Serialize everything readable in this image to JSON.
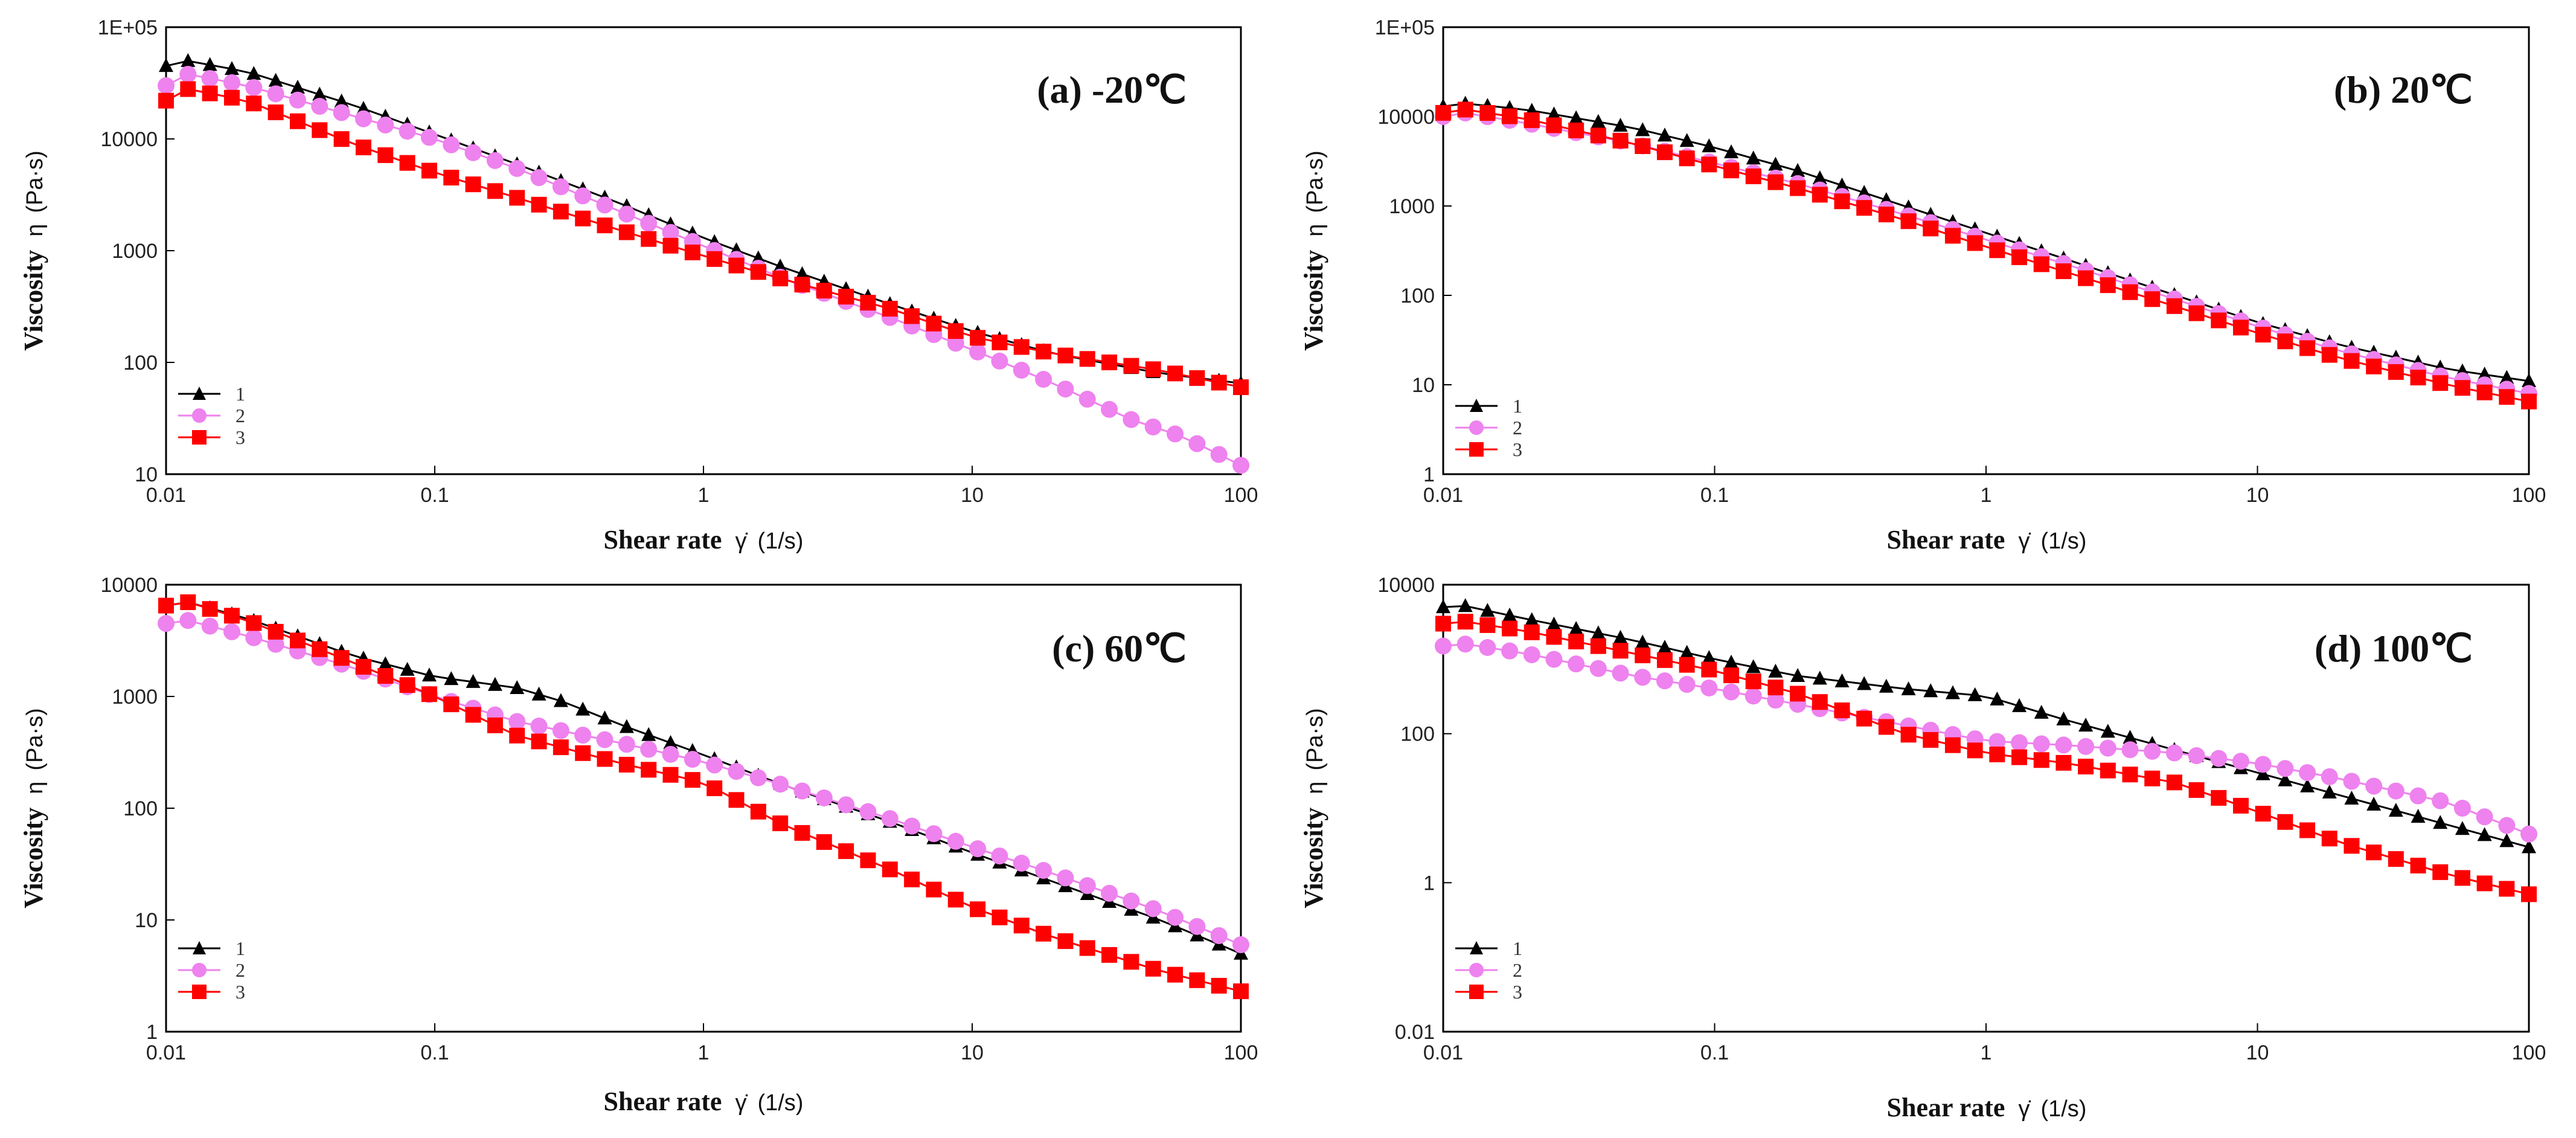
{
  "chart_data": [
    {
      "type": "scatter",
      "title": "(a) -20℃",
      "xlabel": "Shear rate",
      "xlabel_symbol": "γ̇",
      "xlabel_unit": "(1/s)",
      "ylabel": "Viscosity",
      "ylabel_symbol": "η",
      "ylabel_unit": "(Pa·s)",
      "xscale": "log",
      "yscale": "log",
      "xlim": [
        0.01,
        100
      ],
      "ylim": [
        10,
        100000
      ],
      "xticks": [
        "0.01",
        "0.1",
        "1",
        "10",
        "100"
      ],
      "yticks": [
        "10",
        "100",
        "1000",
        "10000",
        "1E+05"
      ],
      "legend_position": "bottom-left",
      "series": [
        {
          "name": "1",
          "marker": "triangle",
          "color": "#000000",
          "x": [
            0.01,
            0.012,
            0.02,
            0.05,
            0.1,
            0.2,
            0.5,
            1,
            2,
            5,
            10,
            20,
            50,
            100
          ],
          "y": [
            45000,
            50000,
            40000,
            20000,
            11000,
            6000,
            2600,
            1300,
            700,
            330,
            190,
            120,
            80,
            65
          ]
        },
        {
          "name": "2",
          "marker": "circle",
          "color": "#ee82ee",
          "x": [
            0.01,
            0.012,
            0.02,
            0.05,
            0.1,
            0.2,
            0.5,
            1,
            2,
            5,
            10,
            20,
            40,
            60,
            100
          ],
          "y": [
            30000,
            38000,
            30000,
            16000,
            10000,
            5500,
            2200,
            1100,
            560,
            250,
            130,
            65,
            30,
            22,
            12
          ]
        },
        {
          "name": "3",
          "marker": "square",
          "color": "#ff0000",
          "x": [
            0.01,
            0.012,
            0.02,
            0.05,
            0.1,
            0.2,
            0.5,
            1,
            2,
            5,
            10,
            20,
            50,
            100
          ],
          "y": [
            22000,
            28000,
            22000,
            9000,
            5000,
            3000,
            1500,
            900,
            550,
            300,
            170,
            120,
            85,
            60
          ]
        }
      ]
    },
    {
      "type": "scatter",
      "title": "(b) 20℃",
      "xlabel": "Shear rate",
      "xlabel_symbol": "γ̇",
      "xlabel_unit": "(1/s)",
      "ylabel": "Viscosity",
      "ylabel_symbol": "η",
      "ylabel_unit": "(Pa·s)",
      "xscale": "log",
      "yscale": "log",
      "xlim": [
        0.01,
        100
      ],
      "ylim": [
        1,
        100000
      ],
      "xticks": [
        "0.01",
        "0.1",
        "1",
        "10",
        "100"
      ],
      "yticks": [
        "1",
        "10",
        "100",
        "1000",
        "10000",
        "1E+05"
      ],
      "legend_position": "bottom-left",
      "series": [
        {
          "name": "1",
          "marker": "triangle",
          "color": "#000000",
          "x": [
            0.01,
            0.012,
            0.02,
            0.05,
            0.1,
            0.2,
            0.5,
            1,
            2,
            5,
            10,
            20,
            50,
            100
          ],
          "y": [
            13000,
            14000,
            12000,
            7500,
            4500,
            2500,
            1000,
            500,
            250,
            100,
            50,
            28,
            15,
            11
          ]
        },
        {
          "name": "2",
          "marker": "circle",
          "color": "#ee82ee",
          "x": [
            0.01,
            0.012,
            0.02,
            0.05,
            0.1,
            0.2,
            0.5,
            1,
            2,
            5,
            10,
            20,
            50,
            100
          ],
          "y": [
            10000,
            11000,
            8500,
            5000,
            3000,
            1800,
            800,
            420,
            220,
            90,
            45,
            24,
            12,
            8
          ]
        },
        {
          "name": "3",
          "marker": "square",
          "color": "#ff0000",
          "x": [
            0.01,
            0.012,
            0.02,
            0.05,
            0.1,
            0.2,
            0.5,
            1,
            2,
            5,
            10,
            20,
            50,
            100
          ],
          "y": [
            11000,
            12000,
            9500,
            5000,
            2800,
            1600,
            700,
            350,
            180,
            75,
            38,
            20,
            10,
            6.5
          ]
        }
      ]
    },
    {
      "type": "scatter",
      "title": "(c) 60℃",
      "xlabel": "Shear rate",
      "xlabel_symbol": "γ̇",
      "xlabel_unit": "(1/s)",
      "ylabel": "Viscosity",
      "ylabel_symbol": "η",
      "ylabel_unit": "(Pa·s)",
      "xscale": "log",
      "yscale": "log",
      "xlim": [
        0.01,
        100
      ],
      "ylim": [
        1,
        10000
      ],
      "xticks": [
        "0.01",
        "0.1",
        "1",
        "10",
        "100"
      ],
      "yticks": [
        "1",
        "10",
        "100",
        "1000",
        "10000"
      ],
      "legend_position": "bottom-left",
      "series": [
        {
          "name": "1",
          "marker": "triangle",
          "color": "#000000",
          "x": [
            0.01,
            0.012,
            0.02,
            0.05,
            0.1,
            0.2,
            0.3,
            0.5,
            1,
            2,
            5,
            10,
            20,
            50,
            100
          ],
          "y": [
            6500,
            7000,
            5000,
            2300,
            1500,
            1200,
            900,
            550,
            300,
            160,
            75,
            40,
            22,
            10,
            5
          ]
        },
        {
          "name": "2",
          "marker": "circle",
          "color": "#ee82ee",
          "x": [
            0.01,
            0.012,
            0.02,
            0.05,
            0.1,
            0.2,
            0.5,
            1,
            2,
            5,
            10,
            20,
            50,
            100
          ],
          "y": [
            4500,
            4800,
            3500,
            1800,
            1000,
            600,
            380,
            260,
            160,
            80,
            45,
            26,
            12,
            6
          ]
        },
        {
          "name": "3",
          "marker": "square",
          "color": "#ff0000",
          "x": [
            0.01,
            0.012,
            0.02,
            0.05,
            0.1,
            0.2,
            0.5,
            1,
            2,
            5,
            10,
            20,
            50,
            100
          ],
          "y": [
            6500,
            7000,
            4800,
            2000,
            1000,
            450,
            250,
            170,
            70,
            28,
            13,
            7,
            3.5,
            2.3
          ]
        }
      ]
    },
    {
      "type": "scatter",
      "title": "(d) 100℃",
      "xlabel": "Shear rate",
      "xlabel_symbol": "γ̇",
      "xlabel_unit": "(1/s)",
      "ylabel": "Viscosity",
      "ylabel_symbol": "η",
      "ylabel_unit": "(Pa·s)",
      "xscale": "log",
      "yscale": "log",
      "xlim": [
        0.01,
        100
      ],
      "ylim": [
        0.01,
        10000
      ],
      "xticks": [
        "0.01",
        "0.1",
        "1",
        "10",
        "100"
      ],
      "yticks": [
        "0.01",
        "1",
        "100",
        "10000"
      ],
      "legend_position": "bottom-left",
      "series": [
        {
          "name": "1",
          "marker": "triangle",
          "color": "#000000",
          "x": [
            0.01,
            0.012,
            0.02,
            0.05,
            0.1,
            0.2,
            0.5,
            1,
            2,
            5,
            10,
            20,
            50,
            100
          ],
          "y": [
            5000,
            5200,
            3500,
            1800,
            1000,
            600,
            400,
            320,
            150,
            60,
            30,
            15,
            6,
            3
          ]
        },
        {
          "name": "2",
          "marker": "circle",
          "color": "#ee82ee",
          "x": [
            0.01,
            0.012,
            0.02,
            0.05,
            0.1,
            0.2,
            0.5,
            1,
            2,
            5,
            10,
            20,
            50,
            100
          ],
          "y": [
            1500,
            1600,
            1200,
            600,
            400,
            250,
            130,
            80,
            70,
            55,
            40,
            25,
            12,
            4.5
          ]
        },
        {
          "name": "3",
          "marker": "square",
          "color": "#ff0000",
          "x": [
            0.01,
            0.012,
            0.02,
            0.05,
            0.1,
            0.2,
            0.5,
            1,
            2,
            5,
            10,
            20,
            50,
            100
          ],
          "y": [
            3000,
            3200,
            2400,
            1200,
            700,
            350,
            100,
            55,
            40,
            22,
            9,
            3.5,
            1.3,
            0.7
          ]
        }
      ]
    }
  ]
}
